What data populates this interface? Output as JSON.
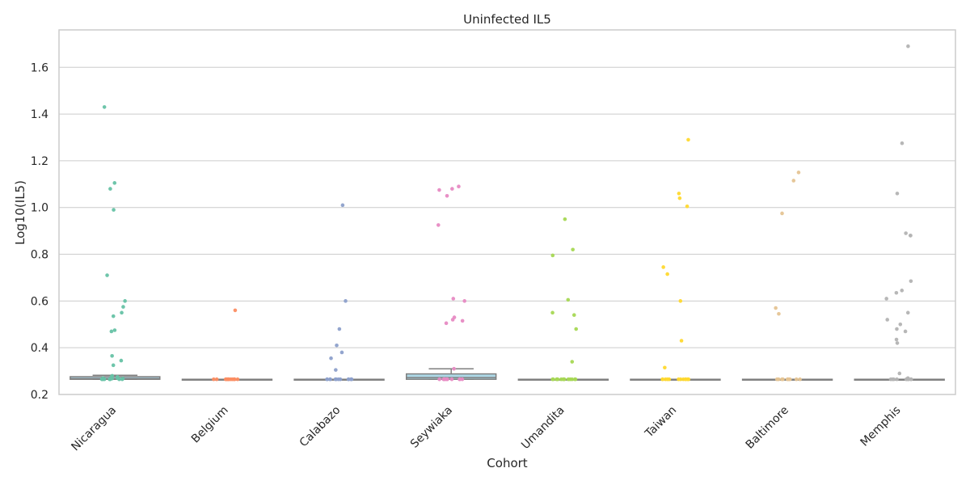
{
  "chart_data": {
    "type": "box+strip",
    "title": "Uninfected IL5",
    "xlabel": "Cohort",
    "ylabel": "Log10(IL5)",
    "ylim": [
      0.2,
      1.76
    ],
    "yticks": [
      0.2,
      0.4,
      0.6,
      0.8,
      1.0,
      1.2,
      1.4,
      1.6
    ],
    "ytick_labels": [
      "0.2",
      "0.4",
      "0.6",
      "0.8",
      "1.0",
      "1.2",
      "1.4",
      "1.6"
    ],
    "grid": "horizontal",
    "categories": [
      "Nicaragua",
      "Belgium",
      "Calabazo",
      "Seywiaka",
      "Umandita",
      "Taiwan",
      "Baltimore",
      "Memphis"
    ],
    "colors": [
      "#66c2a5",
      "#fc8d62",
      "#8da0cb",
      "#e78ac3",
      "#a6d854",
      "#ffd92f",
      "#e5c494",
      "#b3b3b3"
    ],
    "box_face": "#add8e6",
    "box_edge": "#7f7f7f",
    "boxes": [
      {
        "q1": 0.265,
        "median": 0.268,
        "q3": 0.276,
        "whisker_low": 0.265,
        "whisker_high": 0.282
      },
      {
        "q1": 0.265,
        "median": 0.265,
        "q3": 0.265,
        "whisker_low": 0.265,
        "whisker_high": 0.265
      },
      {
        "q1": 0.265,
        "median": 0.265,
        "q3": 0.265,
        "whisker_low": 0.265,
        "whisker_high": 0.265
      },
      {
        "q1": 0.265,
        "median": 0.272,
        "q3": 0.288,
        "whisker_low": 0.265,
        "whisker_high": 0.31
      },
      {
        "q1": 0.265,
        "median": 0.265,
        "q3": 0.265,
        "whisker_low": 0.265,
        "whisker_high": 0.265
      },
      {
        "q1": 0.265,
        "median": 0.265,
        "q3": 0.265,
        "whisker_low": 0.265,
        "whisker_high": 0.265
      },
      {
        "q1": 0.265,
        "median": 0.265,
        "q3": 0.265,
        "whisker_low": 0.265,
        "whisker_high": 0.265
      },
      {
        "q1": 0.265,
        "median": 0.265,
        "q3": 0.265,
        "whisker_low": 0.265,
        "whisker_high": 0.265
      }
    ],
    "points": [
      [
        1.43,
        1.105,
        1.08,
        0.99,
        0.71,
        0.6,
        0.575,
        0.55,
        0.535,
        0.475,
        0.47,
        0.365,
        0.345,
        0.325,
        0.28,
        0.275,
        0.275,
        0.27,
        0.27,
        0.268,
        0.268,
        0.265,
        0.265,
        0.265,
        0.265,
        0.265,
        0.265,
        0.265
      ],
      [
        0.56,
        0.265,
        0.265,
        0.265,
        0.265,
        0.265,
        0.265,
        0.265,
        0.265,
        0.265,
        0.265,
        0.265,
        0.265,
        0.265,
        0.265
      ],
      [
        1.01,
        0.6,
        0.48,
        0.41,
        0.38,
        0.355,
        0.305,
        0.265,
        0.265,
        0.265,
        0.265,
        0.265,
        0.265,
        0.265,
        0.265,
        0.265,
        0.265,
        0.265,
        0.265,
        0.265
      ],
      [
        1.09,
        1.08,
        1.075,
        1.05,
        0.925,
        0.61,
        0.6,
        0.53,
        0.52,
        0.515,
        0.505,
        0.31,
        0.265,
        0.265,
        0.265,
        0.265,
        0.265,
        0.265,
        0.265,
        0.265,
        0.265,
        0.265,
        0.265,
        0.265
      ],
      [
        0.95,
        0.82,
        0.795,
        0.605,
        0.55,
        0.54,
        0.48,
        0.34,
        0.265,
        0.265,
        0.265,
        0.265,
        0.265,
        0.265,
        0.265,
        0.265,
        0.265,
        0.265,
        0.265,
        0.265,
        0.265,
        0.265
      ],
      [
        1.29,
        1.06,
        1.04,
        1.005,
        0.745,
        0.715,
        0.6,
        0.43,
        0.315,
        0.265,
        0.265,
        0.265,
        0.265,
        0.265,
        0.265,
        0.265,
        0.265,
        0.265,
        0.265,
        0.265,
        0.265
      ],
      [
        1.15,
        1.115,
        0.975,
        0.57,
        0.545,
        0.265,
        0.265,
        0.265,
        0.265,
        0.265,
        0.265,
        0.265,
        0.265,
        0.265,
        0.265
      ],
      [
        1.69,
        1.275,
        1.06,
        0.89,
        0.88,
        0.88,
        0.685,
        0.645,
        0.635,
        0.61,
        0.55,
        0.52,
        0.5,
        0.48,
        0.47,
        0.435,
        0.42,
        0.29,
        0.27,
        0.265,
        0.265,
        0.265,
        0.265,
        0.265,
        0.265,
        0.265,
        0.265,
        0.265,
        0.265
      ]
    ]
  }
}
